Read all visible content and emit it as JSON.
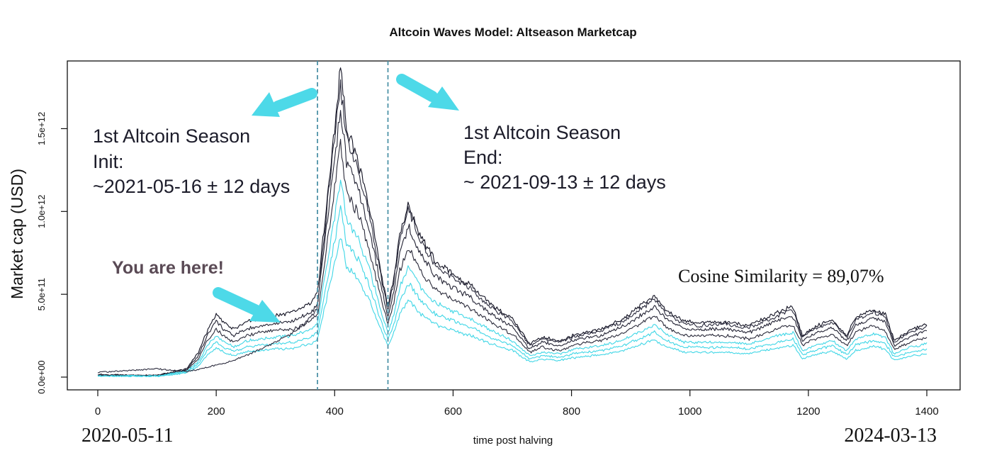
{
  "chart_data": {
    "type": "line",
    "title": "Altcoin Waves Model: Altseason Marketcap",
    "xlabel": "time post halving",
    "ylabel": "Market cap (USD)",
    "xlim": [
      0,
      1400
    ],
    "ylim": [
      0,
      1900000000000.0
    ],
    "x_ticks": [
      0,
      200,
      400,
      600,
      800,
      1000,
      1200,
      1400
    ],
    "x_tick_labels": [
      "0",
      "200",
      "400",
      "600",
      "800",
      "1000",
      "1200",
      "1400"
    ],
    "y_ticks": [
      0,
      500000000000.0,
      1000000000000.0,
      1500000000000.0
    ],
    "y_tick_labels": [
      "0.0e+00",
      "5.0e+11",
      "1.0e+12",
      "1.5e+12"
    ],
    "vlines": [
      371,
      490
    ],
    "grid": false,
    "x": [
      0,
      100,
      150,
      170,
      185,
      200,
      215,
      230,
      250,
      275,
      300,
      330,
      360,
      371,
      385,
      400,
      410,
      420,
      440,
      460,
      480,
      490,
      500,
      510,
      525,
      545,
      570,
      600,
      630,
      660,
      700,
      730,
      750,
      780,
      810,
      850,
      890,
      920,
      940,
      960,
      990,
      1020,
      1060,
      1100,
      1160,
      1175,
      1190,
      1210,
      1240,
      1265,
      1280,
      1310,
      1330,
      1345,
      1370,
      1400
    ],
    "series": [
      {
        "color": "#111122",
        "values": [
          0.15,
          0.1,
          0.5,
          1.5,
          2.8,
          3.8,
          3.2,
          2.9,
          3.3,
          3.6,
          3.7,
          3.9,
          4.5,
          5.0,
          10,
          15,
          18.8,
          15,
          13,
          10,
          6,
          4.2,
          6,
          8.5,
          10.5,
          8.5,
          7,
          6.2,
          5.5,
          4.5,
          3.5,
          2.0,
          2.4,
          2.2,
          2.6,
          2.9,
          3.6,
          4.4,
          4.9,
          4.0,
          3.4,
          3.3,
          3.3,
          3.1,
          4.1,
          4.2,
          2.5,
          3.0,
          3.5,
          2.5,
          3.6,
          4.1,
          3.8,
          2.2,
          2.8,
          3.2
        ]
      },
      {
        "color": "#222233",
        "values": [
          0.13,
          0.09,
          0.45,
          1.3,
          2.5,
          3.4,
          2.8,
          2.5,
          2.9,
          3.1,
          3.2,
          3.4,
          3.9,
          4.3,
          8.7,
          13,
          16.2,
          13,
          11.3,
          8.7,
          5.2,
          3.7,
          5.2,
          7.4,
          9.1,
          7.4,
          6.1,
          5.4,
          4.8,
          3.9,
          3.0,
          1.7,
          2.1,
          1.9,
          2.3,
          2.5,
          3.1,
          3.8,
          4.3,
          3.5,
          2.9,
          2.9,
          2.9,
          2.7,
          3.6,
          3.6,
          2.2,
          2.6,
          3.0,
          2.2,
          3.1,
          3.6,
          3.3,
          1.9,
          2.4,
          2.8
        ]
      },
      {
        "color": "#2a2a3a",
        "values": [
          0.11,
          0.08,
          0.4,
          1.1,
          2.2,
          2.9,
          2.4,
          2.1,
          2.5,
          2.7,
          2.8,
          2.9,
          3.4,
          3.7,
          7.5,
          11.4,
          14.0,
          11.2,
          9.8,
          7.5,
          4.5,
          3.2,
          4.5,
          6.4,
          7.9,
          6.4,
          5.3,
          4.7,
          4.1,
          3.4,
          2.6,
          1.5,
          1.8,
          1.6,
          2.0,
          2.2,
          2.7,
          3.3,
          3.7,
          3.0,
          2.5,
          2.5,
          2.5,
          2.3,
          3.1,
          3.1,
          1.9,
          2.3,
          2.6,
          1.9,
          2.7,
          3.1,
          2.8,
          1.65,
          2.1,
          2.4
        ]
      },
      {
        "color": "#3fd6e6",
        "values": [
          0.09,
          0.07,
          0.35,
          0.95,
          1.9,
          2.5,
          2.1,
          1.8,
          2.2,
          2.3,
          2.4,
          2.5,
          2.9,
          3.2,
          6.4,
          9.7,
          11.9,
          9.5,
          8.3,
          6.4,
          3.8,
          2.7,
          3.8,
          5.4,
          6.7,
          5.4,
          4.5,
          4.0,
          3.5,
          2.9,
          2.2,
          1.3,
          1.5,
          1.4,
          1.7,
          1.9,
          2.3,
          2.8,
          3.2,
          2.6,
          2.1,
          2.1,
          2.1,
          2.0,
          2.6,
          2.7,
          1.6,
          1.9,
          2.2,
          1.6,
          2.3,
          2.6,
          2.4,
          1.4,
          1.8,
          2.0
        ]
      },
      {
        "color": "#3fd6e6",
        "values": [
          0.07,
          0.06,
          0.3,
          0.8,
          1.6,
          2.1,
          1.75,
          1.55,
          1.8,
          1.95,
          2.0,
          2.1,
          2.45,
          2.7,
          5.4,
          8.2,
          10.1,
          8.1,
          7.1,
          5.4,
          3.2,
          2.3,
          3.2,
          4.6,
          5.7,
          4.6,
          3.8,
          3.4,
          3.0,
          2.45,
          1.9,
          1.1,
          1.3,
          1.2,
          1.45,
          1.6,
          1.95,
          2.4,
          2.7,
          2.2,
          1.8,
          1.8,
          1.8,
          1.7,
          2.2,
          2.3,
          1.35,
          1.6,
          1.9,
          1.35,
          1.95,
          2.2,
          2.05,
          1.2,
          1.5,
          1.7
        ]
      },
      {
        "color": "#3fd6e6",
        "values": [
          0.05,
          0.05,
          0.25,
          0.67,
          1.35,
          1.75,
          1.45,
          1.3,
          1.5,
          1.6,
          1.7,
          1.75,
          2.05,
          2.25,
          4.5,
          6.8,
          8.4,
          6.7,
          5.9,
          4.5,
          2.7,
          1.9,
          2.7,
          3.8,
          4.7,
          3.8,
          3.2,
          2.8,
          2.5,
          2.05,
          1.6,
          0.9,
          1.1,
          1.0,
          1.2,
          1.35,
          1.6,
          2.0,
          2.25,
          1.85,
          1.5,
          1.5,
          1.5,
          1.4,
          1.85,
          1.9,
          1.1,
          1.35,
          1.55,
          1.1,
          1.6,
          1.85,
          1.7,
          1.0,
          1.25,
          1.4
        ]
      },
      {
        "color": "#2b2b3d",
        "values": [
          0.28,
          0.5,
          0.35,
          0.45,
          0.6,
          0.75,
          0.85,
          1.0,
          1.3,
          1.7,
          2.1,
          2.7,
          3.6,
          4.2,
          9.5,
          14.5,
          17.5,
          14.5,
          12.5,
          9.5,
          5.8,
          4.0,
          5.8,
          8.2,
          10.2,
          8.2,
          6.8,
          6.0,
          5.3,
          4.3,
          3.4,
          1.9,
          2.3,
          2.1,
          2.5,
          2.8,
          3.4,
          4.2,
          4.7,
          3.8,
          3.2,
          3.1,
          3.2,
          3.0,
          3.9,
          4.0,
          2.4,
          2.9,
          3.3,
          2.4,
          3.4,
          3.9,
          3.6,
          2.1,
          2.7,
          3.05
        ]
      }
    ],
    "value_scale_note": "",
    "annotations": {
      "init": [
        "1st Altcoin Season",
        "Init:",
        "~2021-05-16 ± 12 days"
      ],
      "end": [
        "1st Altcoin Season",
        "End:",
        "~ 2021-09-13 ± 12 days"
      ],
      "here": "You are here!",
      "cosine": "Cosine Similarity = 89,07%",
      "start_date": "2020-05-11",
      "end_date": "2024-03-13"
    },
    "colors": {
      "arrow": "#4dd9e8",
      "vline": "#4f93a8",
      "axis": "#111111"
    }
  }
}
